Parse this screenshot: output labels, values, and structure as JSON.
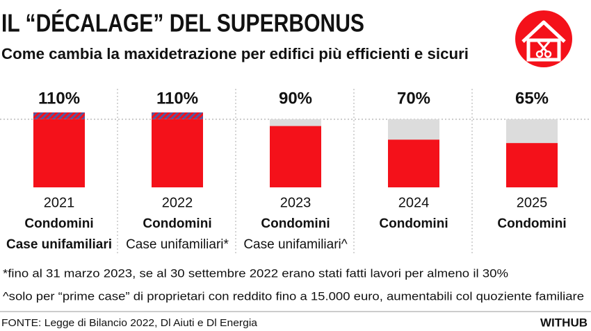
{
  "chart_data": {
    "type": "bar",
    "title": "IL “DÉCALAGE” DEL SUPERBONUS",
    "subtitle": "Come cambia la maxidetrazione per edifici più efficienti e sicuri",
    "categories": [
      "2021",
      "2022",
      "2023",
      "2024",
      "2025"
    ],
    "values": [
      110,
      110,
      90,
      70,
      65
    ],
    "value_labels": [
      "110%",
      "110%",
      "90%",
      "70%",
      "65%"
    ],
    "sublabels": [
      [
        {
          "text": "Condomini",
          "bold": true
        },
        {
          "text": "Case unifamiliari",
          "bold": true
        }
      ],
      [
        {
          "text": "Condomini",
          "bold": true
        },
        {
          "text": "Case unifamiliari*",
          "bold": false
        }
      ],
      [
        {
          "text": "Condomini",
          "bold": true
        },
        {
          "text": "Case unifamiliari^",
          "bold": false
        }
      ],
      [
        {
          "text": "Condomini",
          "bold": true
        }
      ],
      [
        {
          "text": "Condomini",
          "bold": true
        }
      ]
    ],
    "ylim": [
      0,
      110
    ],
    "reference_line": 100,
    "color": "#f4111a",
    "background_color": "#dcdcdc",
    "excess_color": "#55579f"
  },
  "footnotes": [
    "*fino al 31 marzo 2023, se al 30 settembre 2022 erano stati fatti lavori per almeno il 30%",
    "^solo per “prime case” di proprietari con reddito fino a 15.000 euro, aumentabili col quoziente familiare"
  ],
  "source": "FONTE: Legge di Bilancio 2022, Dl Aiuti e Dl Energia",
  "brand": "WITHUB"
}
